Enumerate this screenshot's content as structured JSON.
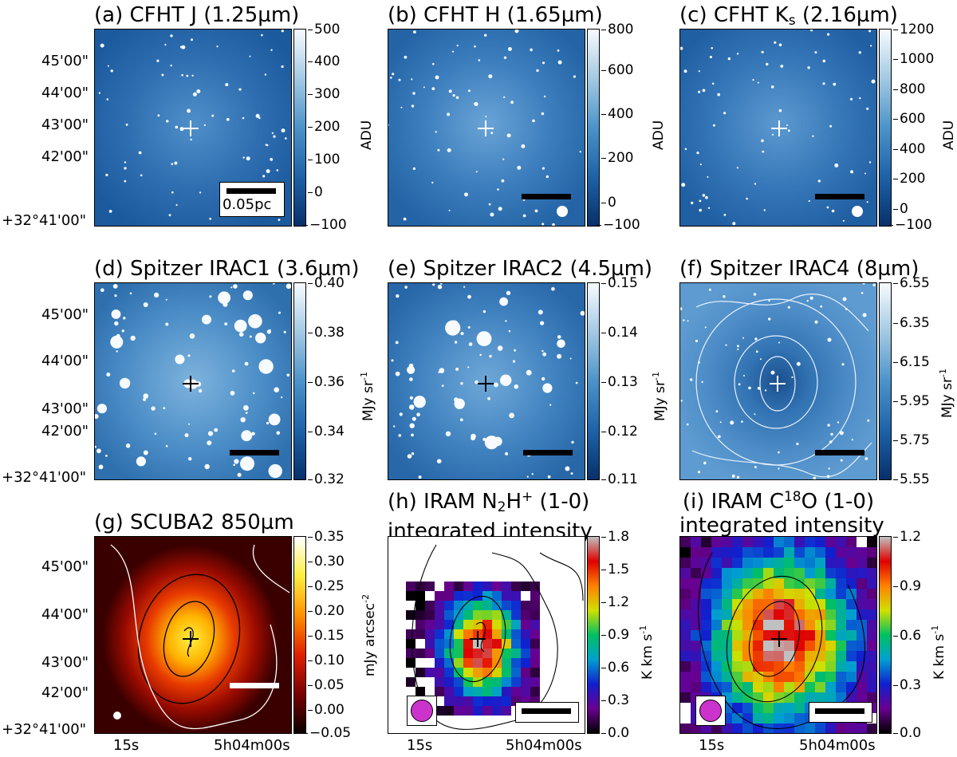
{
  "panels": {
    "a": {
      "title_pre": "(a) CFHT J (1.25",
      "title_post": "m)",
      "mu": "µ",
      "unit": "ADU",
      "ticks": [
        "500",
        "400",
        "300",
        "200",
        "100",
        "0",
        "−100"
      ],
      "scalebar_label": "0.05pc"
    },
    "b": {
      "title_pre": "(b) CFHT H (1.65",
      "title_post": "m)",
      "mu": "µ",
      "unit": "ADU",
      "ticks": [
        "800",
        "600",
        "400",
        "200",
        "0",
        "−100"
      ]
    },
    "c": {
      "title_pre": "(c) CFHT K",
      "title_sub": "s",
      "title_post": " (2.16µm)",
      "unit": "ADU",
      "ticks": [
        "1200",
        "1000",
        "800",
        "600",
        "400",
        "200",
        "0",
        "−100"
      ]
    },
    "d": {
      "title": "(d) Spitzer IRAC1 (3.6µm)",
      "unit_pre": "MJy sr",
      "unit_sup": "-1",
      "ticks": [
        "0.40",
        "0.38",
        "0.36",
        "0.34",
        "0.32"
      ]
    },
    "e": {
      "title": "(e) Spitzer IRAC2 (4.5µm)",
      "unit_pre": "MJy sr",
      "unit_sup": "-1",
      "ticks": [
        "0.15",
        "0.14",
        "0.13",
        "0.12",
        "0.11"
      ]
    },
    "f": {
      "title": "(f) Spitzer IRAC4 (8µm)",
      "unit_pre": "MJy sr",
      "unit_sup": "-1",
      "ticks": [
        "6.55",
        "6.35",
        "6.15",
        "5.95",
        "5.75",
        "5.55"
      ]
    },
    "g": {
      "title": "(g) SCUBA2 850µm",
      "unit_pre": "mJy arcsec",
      "unit_sup": "-2",
      "ticks": [
        "0.35",
        "0.30",
        "0.25",
        "0.20",
        "0.15",
        "0.10",
        "0.05",
        "0.00",
        "−0.05"
      ]
    },
    "h": {
      "title1_pre": "(h) IRAM N",
      "title1_sub": "2",
      "title1_mid": "H",
      "title1_sup": "+",
      "title1_post": " (1-0)",
      "title2": "integrated intensity",
      "unit_pre": "K km s",
      "unit_sup": "-1",
      "ticks": [
        "1.8",
        "1.5",
        "1.2",
        "0.9",
        "0.6",
        "0.3",
        "0.0"
      ]
    },
    "i": {
      "title1_pre": "(i) IRAM C",
      "title1_sup": "18",
      "title1_post": "O (1-0)",
      "title2": "integrated intensity",
      "unit_pre": "K km s",
      "unit_sup": "-1",
      "ticks": [
        "1.2",
        "0.9",
        "0.6",
        "0.3",
        "0.0"
      ]
    }
  },
  "axes": {
    "dec_ticks": [
      "45'00\"",
      "44'00\"",
      "43'00\"",
      "42'00\""
    ],
    "dec_origin": "+32°41'00\"",
    "ra_ticks": [
      "15s",
      "5h04m00s"
    ]
  },
  "colors": {
    "blues_low": "#08306b",
    "blues_high": "#f7fbff",
    "hot_low": "#0b0000",
    "hot_high": "#ffffff"
  }
}
